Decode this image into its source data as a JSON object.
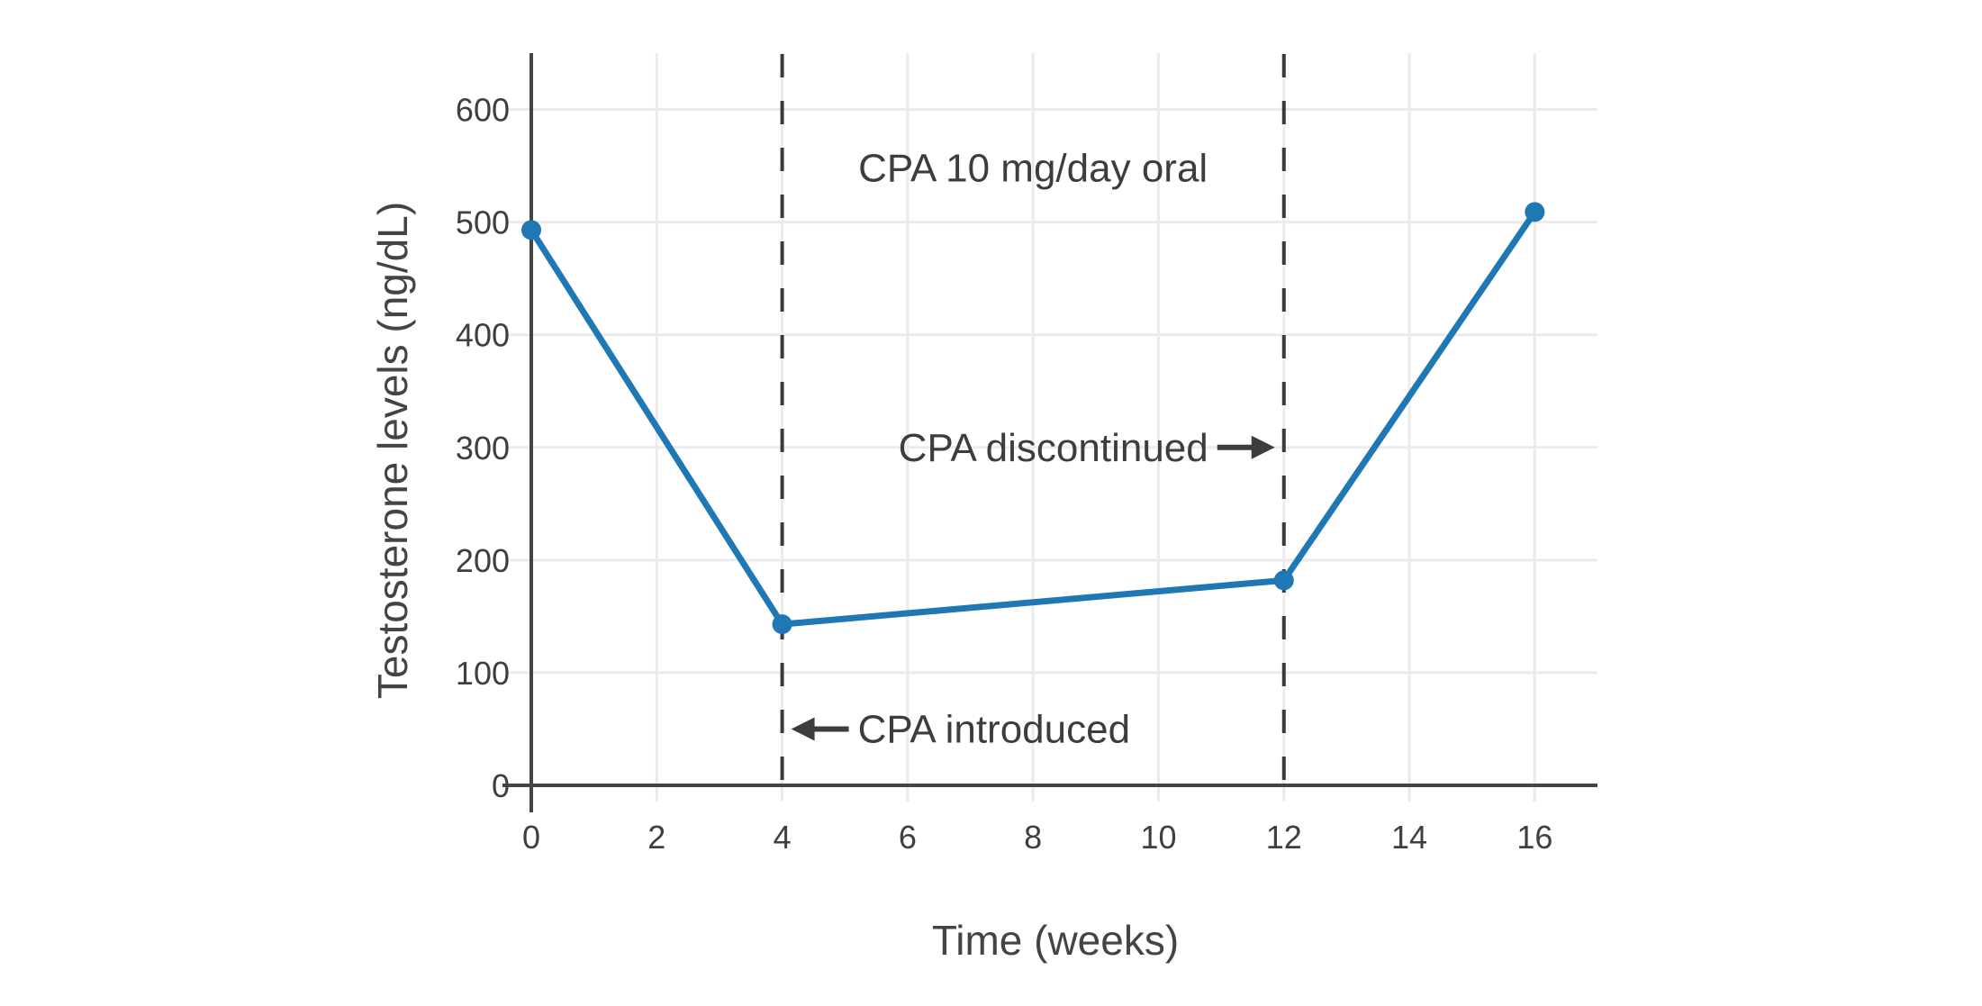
{
  "chart_data": {
    "type": "line",
    "x": [
      0,
      4,
      12,
      16
    ],
    "y": [
      493,
      143,
      182,
      509
    ],
    "series_name": "Testosterone levels",
    "xlabel": "Time (weeks)",
    "ylabel": "Testosterone levels (ng/dL)",
    "xlim": [
      0,
      17
    ],
    "ylim": [
      0,
      650
    ],
    "xticks": [
      0,
      2,
      4,
      6,
      8,
      10,
      12,
      14,
      16
    ],
    "yticks": [
      0,
      100,
      200,
      300,
      400,
      500,
      600
    ],
    "grid": true,
    "legend": false,
    "marker": "circle",
    "vlines": [
      {
        "x": 4,
        "style": "dashed"
      },
      {
        "x": 12,
        "style": "dashed"
      }
    ],
    "annotations": [
      {
        "text": "CPA 10 mg/day oral",
        "x": 8,
        "y": 548,
        "arrow": "none"
      },
      {
        "text": "CPA discontinued",
        "x": 12,
        "y": 300,
        "arrow": "right"
      },
      {
        "text": "CPA introduced",
        "x": 4,
        "y": 50,
        "arrow": "left"
      }
    ]
  },
  "colors": {
    "line": "#1f77b4",
    "marker": "#1f77b4",
    "axis": "#444444",
    "grid": "#ebebeb",
    "tick_text": "#3f3f3f",
    "annotation_text": "#3d3d3d",
    "vline": "#3a3a3a",
    "background": "#ffffff"
  }
}
